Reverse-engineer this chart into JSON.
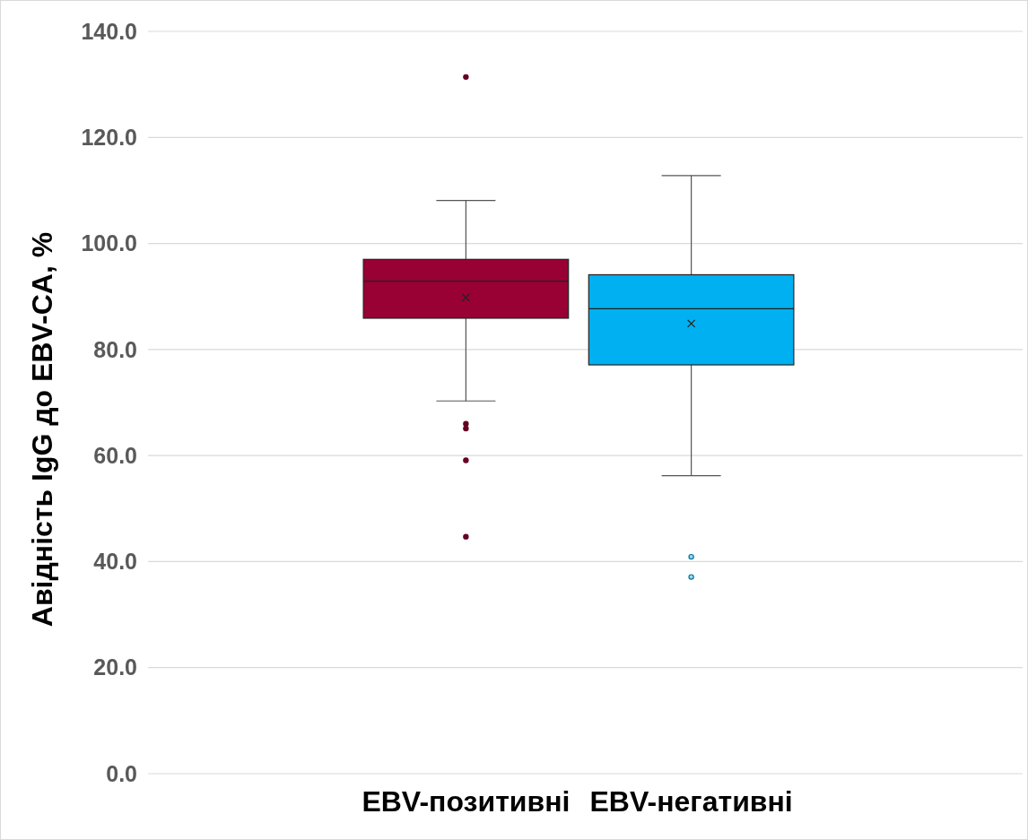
{
  "chart_data": {
    "type": "box",
    "ylabel": "Авідність IgG до EBV-CA, %",
    "categories": [
      "EBV-позитивні",
      "EBV-негативні"
    ],
    "ylim": [
      0,
      140
    ],
    "yticks": [
      {
        "value": 0,
        "label": "0.0"
      },
      {
        "value": 20,
        "label": "20.0"
      },
      {
        "value": 40,
        "label": "40.0"
      },
      {
        "value": 60,
        "label": "60.0"
      },
      {
        "value": 80,
        "label": "80.0"
      },
      {
        "value": 100,
        "label": "100.0"
      },
      {
        "value": 120,
        "label": "120.0"
      },
      {
        "value": 140,
        "label": "140.0"
      }
    ],
    "grid": "y",
    "boxes": [
      {
        "low": 70.3,
        "q1": 85.9,
        "median": 92.9,
        "q3": 97.0,
        "high": 108.1,
        "mean": 89.8,
        "outliers": [
          131.4,
          66.0,
          65.1,
          59.1,
          44.7
        ]
      },
      {
        "low": 56.2,
        "q1": 77.1,
        "median": 87.7,
        "q3": 94.1,
        "high": 112.8,
        "mean": 84.9,
        "outliers": [
          40.9,
          37.1
        ]
      }
    ],
    "colors": [
      "#990033",
      "#00b0f0"
    ]
  }
}
